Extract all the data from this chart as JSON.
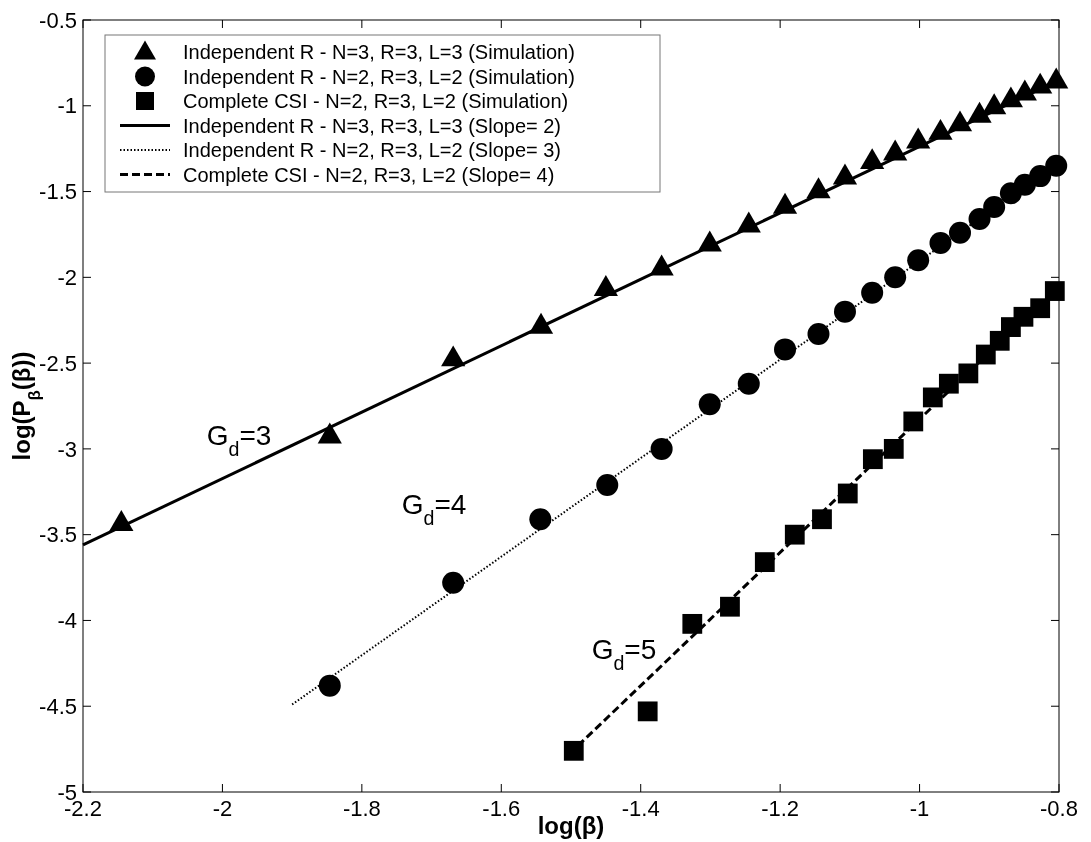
{
  "chart_data": {
    "type": "scatter",
    "xlabel": "log(β)",
    "ylabel": "log(P$_{β}$(β))",
    "xlim": [
      -2.2,
      -0.8
    ],
    "xticks": [
      -2.2,
      -2,
      -1.8,
      -1.6,
      -1.4,
      -1.2,
      -1,
      -0.8
    ],
    "ylim": [
      -5,
      -0.5
    ],
    "yticks": [
      -5,
      -4.5,
      -4,
      -3.5,
      -3,
      -2.5,
      -2,
      -1.5,
      -1,
      -0.5
    ],
    "grid": false,
    "legend": "top left",
    "series": [
      {
        "name": "Independent R - N=3, R=3, L=3 (Simulation)",
        "marker": "triangle",
        "color": "#000000",
        "x": [
          -2.145,
          -1.846,
          -1.669,
          -1.543,
          -1.45,
          -1.37,
          -1.301,
          -1.245,
          -1.193,
          -1.145,
          -1.107,
          -1.068,
          -1.035,
          -1.002,
          -0.97,
          -0.942,
          -0.914,
          -0.893,
          -0.869,
          -0.849,
          -0.827,
          -0.804
        ],
        "values": [
          -3.43,
          -2.92,
          -2.47,
          -2.28,
          -2.06,
          -1.94,
          -1.8,
          -1.69,
          -1.58,
          -1.49,
          -1.41,
          -1.32,
          -1.27,
          -1.2,
          -1.15,
          -1.1,
          -1.05,
          -1.0,
          -0.96,
          -0.92,
          -0.88,
          -0.85
        ]
      },
      {
        "name": "Independent R - N=2, R=3, L=2 (Simulation)",
        "marker": "circle",
        "color": "#000000",
        "x": [
          -1.846,
          -1.669,
          -1.544,
          -1.448,
          -1.37,
          -1.301,
          -1.245,
          -1.193,
          -1.145,
          -1.107,
          -1.068,
          -1.035,
          -1.002,
          -0.97,
          -0.942,
          -0.914,
          -0.893,
          -0.869,
          -0.849,
          -0.827,
          -0.804
        ],
        "values": [
          -4.38,
          -3.78,
          -3.41,
          -3.21,
          -3.0,
          -2.74,
          -2.62,
          -2.42,
          -2.33,
          -2.2,
          -2.09,
          -2.0,
          -1.9,
          -1.8,
          -1.74,
          -1.66,
          -1.59,
          -1.51,
          -1.46,
          -1.41,
          -1.35
        ]
      },
      {
        "name": "Complete CSI  - N=2, R=3, L=2 (Simulation)",
        "marker": "square",
        "color": "#000000",
        "x": [
          -1.496,
          -1.39,
          -1.326,
          -1.272,
          -1.222,
          -1.179,
          -1.14,
          -1.103,
          -1.067,
          -1.037,
          -1.009,
          -0.981,
          -0.958,
          -0.93,
          -0.905,
          -0.885,
          -0.869,
          -0.851,
          -0.827,
          -0.806
        ],
        "values": [
          -4.76,
          -4.53,
          -4.02,
          -3.92,
          -3.66,
          -3.5,
          -3.41,
          -3.26,
          -3.06,
          -3.0,
          -2.84,
          -2.7,
          -2.62,
          -2.56,
          -2.45,
          -2.37,
          -2.29,
          -2.23,
          -2.18,
          -2.08
        ]
      },
      {
        "name": "Independent R - N=3, R=3, L=3 (Slope= 2)",
        "type": "line",
        "line_style": "solid",
        "color": "#000000",
        "x": [
          -2.2,
          -0.8
        ],
        "values": [
          -3.56,
          -0.85
        ]
      },
      {
        "name": "Independent R - N=2, R=3, L=2 (Slope= 3)",
        "type": "line",
        "line_style": "dotted",
        "color": "#000000",
        "x": [
          -1.9,
          -0.8
        ],
        "values": [
          -4.49,
          -1.33
        ]
      },
      {
        "name": "Complete CSI  - N=2, R=3, L=2 (Slope= 4)",
        "type": "line",
        "line_style": "dashed",
        "color": "#000000",
        "x": [
          -1.49,
          -0.8
        ],
        "values": [
          -4.73,
          -2.05
        ]
      }
    ],
    "annotations": [
      "G$_{d}$=3",
      "G$_{d}$=4",
      "G$_{d}$=5"
    ]
  }
}
